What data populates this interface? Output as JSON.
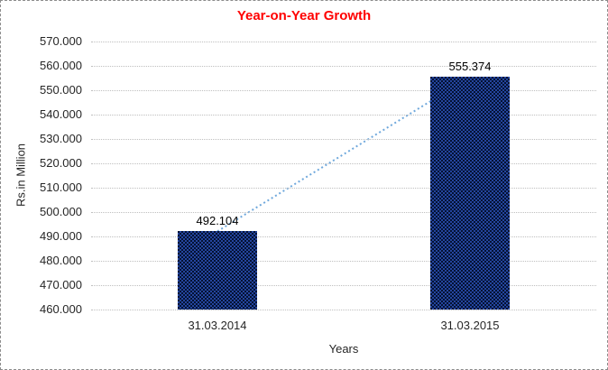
{
  "window": {
    "background": "#FFFFFF",
    "border_color": "#8C8C8C"
  },
  "chart_data": {
    "type": "bar",
    "title": "Year-on-Year Growth",
    "title_color": "#FF0000",
    "xlabel": "Years",
    "ylabel": "Rs.in Million",
    "categories": [
      "31.03.2014",
      "31.03.2015"
    ],
    "values": [
      492.104,
      555.374
    ],
    "value_labels": [
      "492.104",
      "555.374"
    ],
    "ylim": [
      460,
      570
    ],
    "ytick_step": 10,
    "ytick_labels": [
      "460.000",
      "470.000",
      "480.000",
      "490.000",
      "500.000",
      "510.000",
      "520.000",
      "530.000",
      "540.000",
      "550.000",
      "560.000",
      "570.000"
    ],
    "grid": "horizontal-dotted",
    "gridline_color": "#BFBFBF",
    "bar_color_base": "#041233",
    "bar_color_check": "#24459E",
    "trendline": {
      "type": "linear",
      "style": "dotted",
      "color": "#6FA8DC",
      "from_value": 492.104,
      "to_value": 555.374
    },
    "legend_position": "none"
  }
}
